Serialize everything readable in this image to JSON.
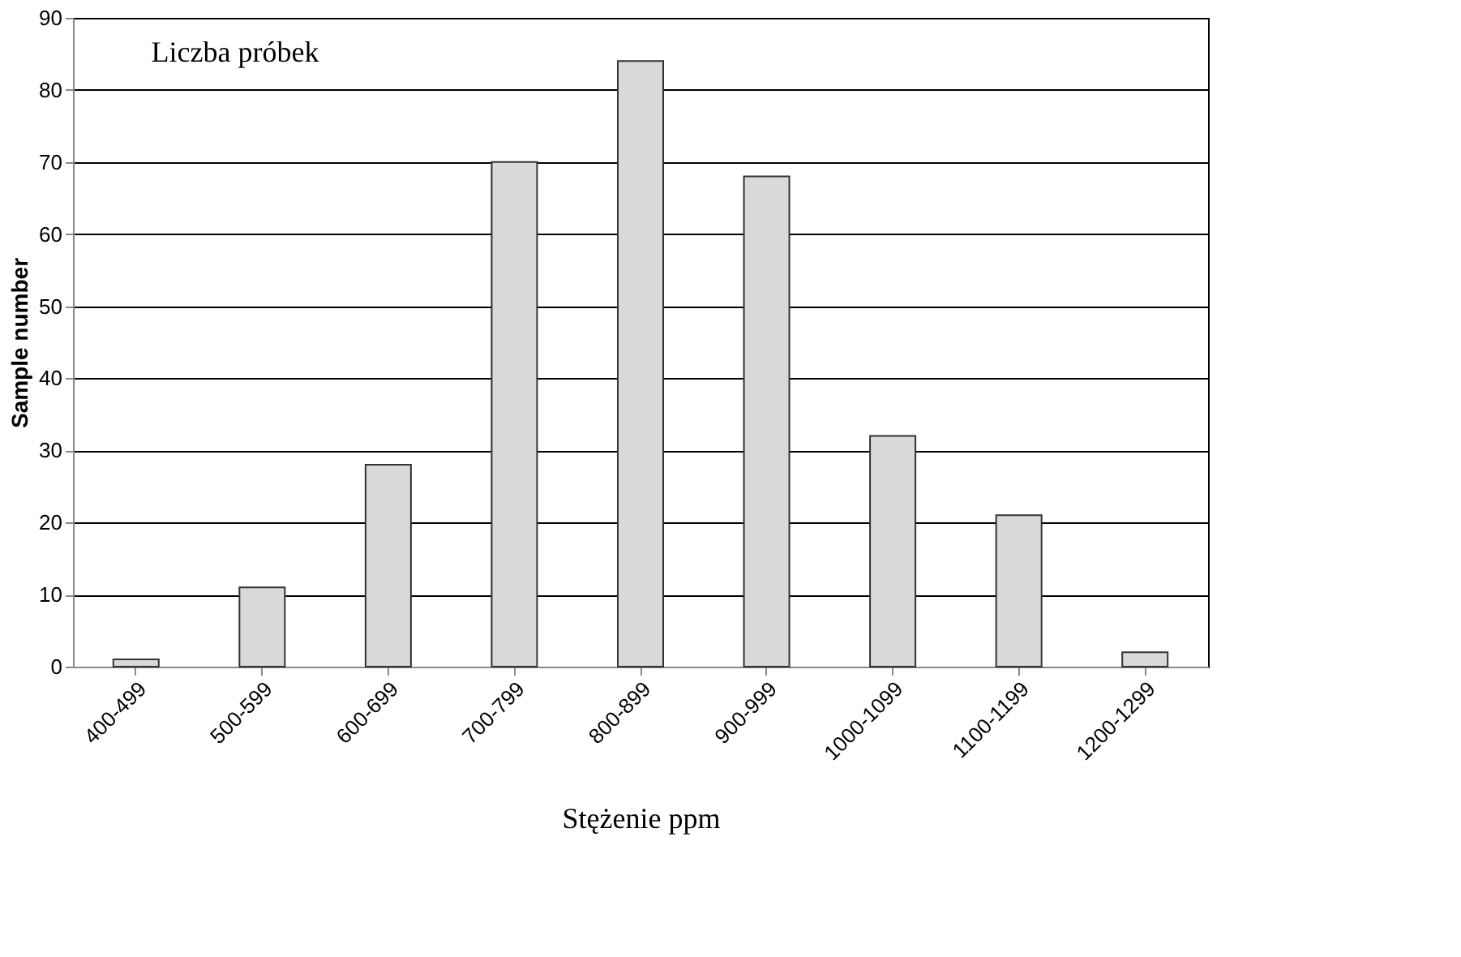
{
  "chart_data": {
    "type": "bar",
    "xlabel": "Stężenie ppm",
    "ylabel": "Sample number",
    "annotations": [
      "Liczba próbek"
    ],
    "categories": [
      "400-499",
      "500-599",
      "600-699",
      "700-799",
      "800-899",
      "900-999",
      "1000-1099",
      "1100-1199",
      "1200-1299"
    ],
    "values": [
      1,
      11,
      28,
      70,
      84,
      68,
      32,
      21,
      2
    ],
    "color": "#d9d9d9",
    "ylim": [
      0,
      90
    ],
    "yticks": [
      0,
      10,
      20,
      30,
      40,
      50,
      60,
      70,
      80,
      90
    ],
    "grid": "y"
  }
}
